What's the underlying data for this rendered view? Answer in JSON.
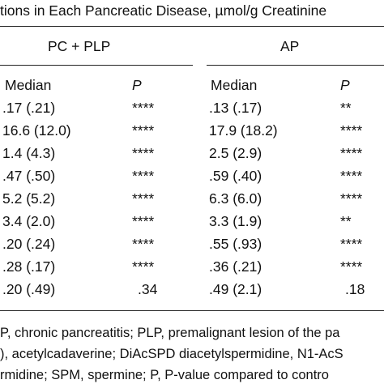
{
  "table": {
    "title": "tions in Each Pancreatic Disease, µmol/g Creatinine",
    "groups": [
      {
        "label": "PC + PLP"
      },
      {
        "label": "AP"
      }
    ],
    "subheaders": {
      "median": "Median",
      "p": "P"
    },
    "rows": [
      {
        "pc_median": ".17 (.21)",
        "pc_p": "****",
        "ap_median": ".13 (.17)",
        "ap_p": "**"
      },
      {
        "pc_median": "16.6 (12.0)",
        "pc_p": "****",
        "ap_median": "17.9 (18.2)",
        "ap_p": "****"
      },
      {
        "pc_median": "1.4 (4.3)",
        "pc_p": "****",
        "ap_median": "2.5 (2.9)",
        "ap_p": "****"
      },
      {
        "pc_median": ".47 (.50)",
        "pc_p": "****",
        "ap_median": ".59 (.40)",
        "ap_p": "****"
      },
      {
        "pc_median": "5.2 (5.2)",
        "pc_p": "****",
        "ap_median": "6.3 (6.0)",
        "ap_p": "****"
      },
      {
        "pc_median": "3.4 (2.0)",
        "pc_p": "****",
        "ap_median": "3.3 (1.9)",
        "ap_p": "**"
      },
      {
        "pc_median": ".20 (.24)",
        "pc_p": "****",
        "ap_median": ".55 (.93)",
        "ap_p": "****"
      },
      {
        "pc_median": ".28 (.17)",
        "pc_p": "****",
        "ap_median": ".36 (.21)",
        "ap_p": "****"
      },
      {
        "pc_median": ".20 (.49)",
        "pc_p": ".34",
        "ap_median": ".49 (2.1)",
        "ap_p": ".18"
      }
    ],
    "footnotes": [
      "P, chronic pancreatitis; PLP, premalignant lesion of the pa",
      "), acetylcadaverine; DiAcSPD diacetylspermidine, N1-AcS",
      "rmidine; SPM, spermine; P, P-value compared to contro"
    ]
  }
}
